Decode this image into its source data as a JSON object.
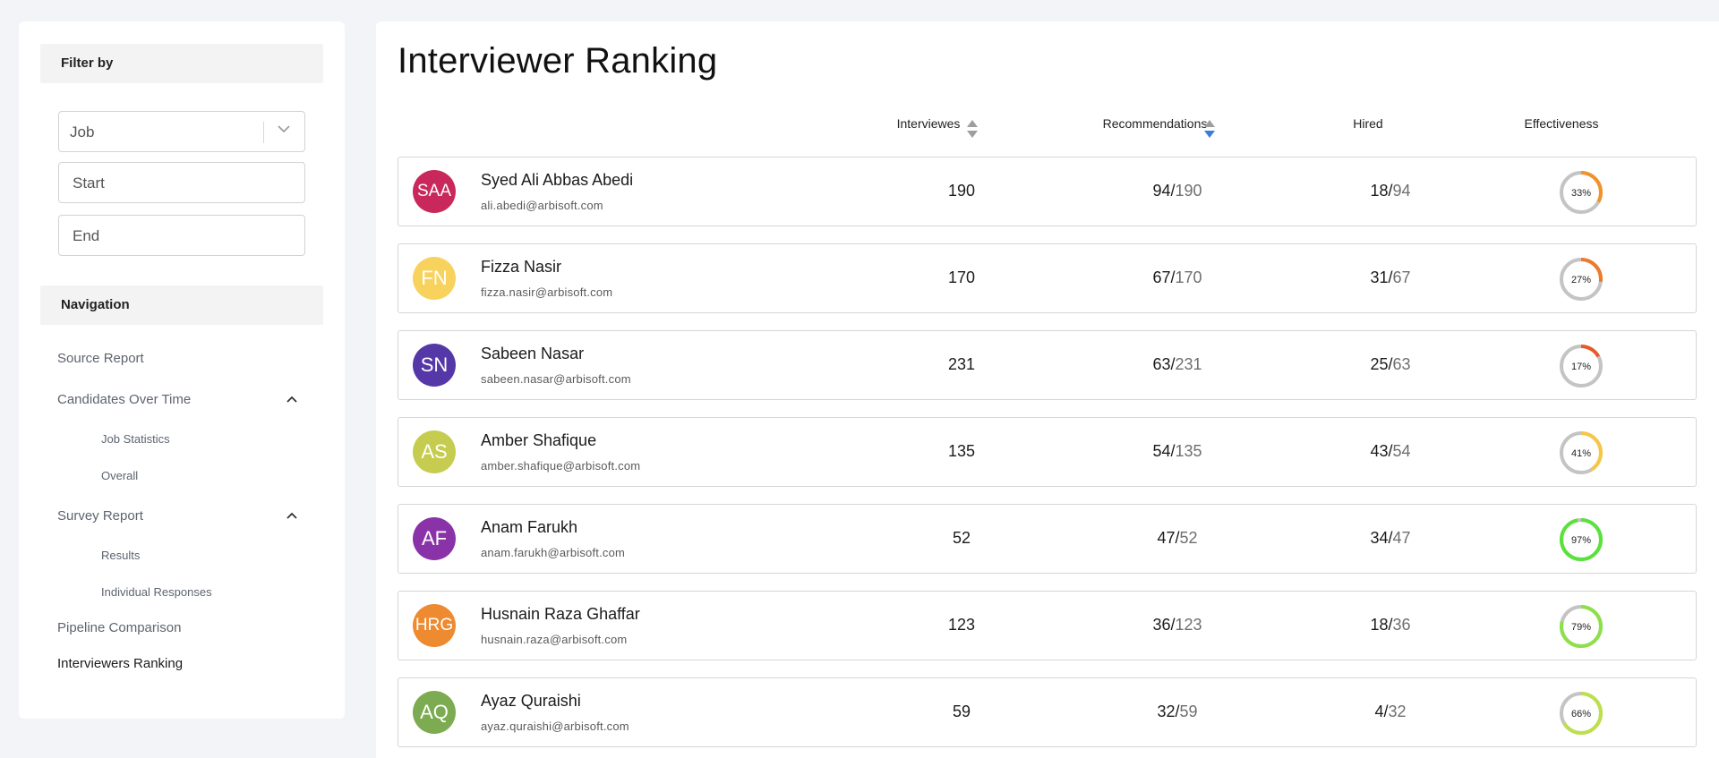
{
  "sidebar": {
    "filter_title": "Filter by",
    "job_select": {
      "value": "Job"
    },
    "start_placeholder": "Start",
    "end_placeholder": "End",
    "navigation_title": "Navigation",
    "items": {
      "source_report": "Source Report",
      "candidates_over_time": "Candidates Over Time",
      "job_statistics": "Job Statistics",
      "overall": "Overall",
      "survey_report": "Survey Report",
      "results": "Results",
      "individual_responses": "Individual Responses",
      "pipeline_comparison": "Pipeline Comparison",
      "interviewers_ranking": "Interviewers Ranking"
    }
  },
  "main": {
    "title": "Interviewer Ranking",
    "columns": {
      "interviews": "Interviewes",
      "recommendations": "Recommendations",
      "hired": "Hired",
      "effectiveness": "Effectiveness"
    },
    "rows": [
      {
        "initials": "SAA",
        "name": "Syed Ali Abbas Abedi",
        "email": "ali.abedi@arbisoft.com",
        "interviews": "190",
        "rec_num": "94",
        "rec_den": "190",
        "hired_num": "18",
        "hired_den": "94",
        "effectiveness": "33%",
        "pct": 33,
        "avatar_color": "#c9285a",
        "ring_color": "#f0932b"
      },
      {
        "initials": "FN",
        "name": "Fizza Nasir",
        "email": "fizza.nasir@arbisoft.com",
        "interviews": "170",
        "rec_num": "67",
        "rec_den": "170",
        "hired_num": "31",
        "hired_den": "67",
        "effectiveness": "27%",
        "pct": 27,
        "avatar_color": "#f7d25c",
        "ring_color": "#ee7a2a"
      },
      {
        "initials": "SN",
        "name": "Sabeen Nasar",
        "email": "sabeen.nasar@arbisoft.com",
        "interviews": "231",
        "rec_num": "63",
        "rec_den": "231",
        "hired_num": "25",
        "hired_den": "63",
        "effectiveness": "17%",
        "pct": 17,
        "avatar_color": "#5637a8",
        "ring_color": "#e55a2b"
      },
      {
        "initials": "AS",
        "name": "Amber Shafique",
        "email": "amber.shafique@arbisoft.com",
        "interviews": "135",
        "rec_num": "54",
        "rec_den": "135",
        "hired_num": "43",
        "hired_den": "54",
        "effectiveness": "41%",
        "pct": 41,
        "avatar_color": "#c6cc4f",
        "ring_color": "#f6c744"
      },
      {
        "initials": "AF",
        "name": "Anam Farukh",
        "email": "anam.farukh@arbisoft.com",
        "interviews": "52",
        "rec_num": "47",
        "rec_den": "52",
        "hired_num": "34",
        "hired_den": "47",
        "effectiveness": "97%",
        "pct": 97,
        "avatar_color": "#8a33a8",
        "ring_color": "#59e23a"
      },
      {
        "initials": "HRG",
        "name": "Husnain Raza Ghaffar",
        "email": "husnain.raza@arbisoft.com",
        "interviews": "123",
        "rec_num": "36",
        "rec_den": "123",
        "hired_num": "18",
        "hired_den": "36",
        "effectiveness": "79%",
        "pct": 79,
        "avatar_color": "#ee8a30",
        "ring_color": "#8de04a"
      },
      {
        "initials": "AQ",
        "name": "Ayaz Quraishi",
        "email": "ayaz.quraishi@arbisoft.com",
        "interviews": "59",
        "rec_num": "32",
        "rec_den": "59",
        "hired_num": "4",
        "hired_den": "32",
        "effectiveness": "66%",
        "pct": 66,
        "avatar_color": "#7cab52",
        "ring_color": "#bde04a"
      }
    ]
  },
  "colors": {
    "sort_active": "#3b7dd8",
    "sort_inactive": "#9e9e9e",
    "ring_track": "#c4c4c4"
  }
}
